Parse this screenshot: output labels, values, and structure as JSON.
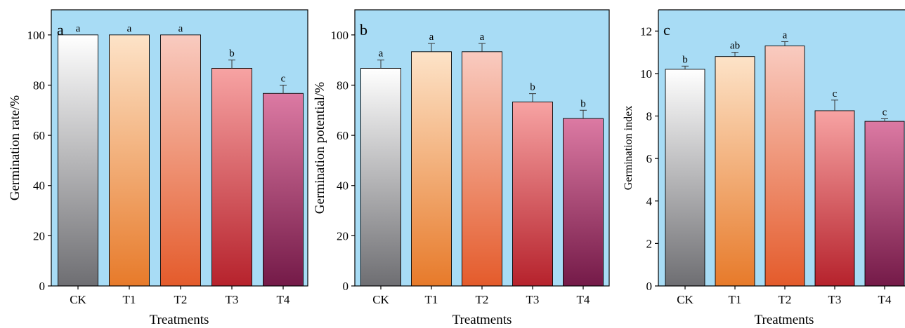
{
  "chart_data": [
    {
      "type": "bar",
      "panel_label": "a",
      "categories": [
        "CK",
        "T1",
        "T2",
        "T3",
        "T4"
      ],
      "values": [
        100,
        100,
        100,
        86.7,
        76.7
      ],
      "errors": [
        0,
        0,
        0,
        3.3,
        3.3
      ],
      "significance": [
        "a",
        "a",
        "a",
        "b",
        "c"
      ],
      "xlabel": "Treatments",
      "ylabel": "Germination rate/%",
      "ylim": [
        0,
        110
      ],
      "yticks": [
        0,
        20,
        40,
        60,
        80,
        100
      ]
    },
    {
      "type": "bar",
      "panel_label": "b",
      "categories": [
        "CK",
        "T1",
        "T2",
        "T3",
        "T4"
      ],
      "values": [
        86.7,
        93.3,
        93.3,
        73.3,
        66.7
      ],
      "errors": [
        3.3,
        3.3,
        3.3,
        3.3,
        3.3
      ],
      "significance": [
        "a",
        "a",
        "a",
        "b",
        "b"
      ],
      "xlabel": "Treatments",
      "ylabel": "Germination potential/%",
      "ylim": [
        0,
        110
      ],
      "yticks": [
        0,
        20,
        40,
        60,
        80,
        100
      ]
    },
    {
      "type": "bar",
      "panel_label": "c",
      "categories": [
        "CK",
        "T1",
        "T2",
        "T3",
        "T4"
      ],
      "values": [
        10.2,
        10.8,
        11.3,
        8.25,
        7.75
      ],
      "errors": [
        0.15,
        0.2,
        0.2,
        0.5,
        0.12
      ],
      "significance": [
        "b",
        "ab",
        "a",
        "c",
        "c"
      ],
      "xlabel": "Treatments",
      "ylabel": "Germination index",
      "ylim": [
        0,
        13
      ],
      "yticks": [
        0,
        2,
        4,
        6,
        8,
        10,
        12
      ]
    }
  ],
  "colors": {
    "panel_background": "#a8dcf5",
    "bar_gradients": [
      [
        "#ffffff",
        "#6e6e72"
      ],
      [
        "#fde3c8",
        "#e77a2a"
      ],
      [
        "#f9cbc0",
        "#e45b2b"
      ],
      [
        "#f7a3a3",
        "#b6222c"
      ],
      [
        "#dc7aa3",
        "#741a48"
      ]
    ]
  }
}
